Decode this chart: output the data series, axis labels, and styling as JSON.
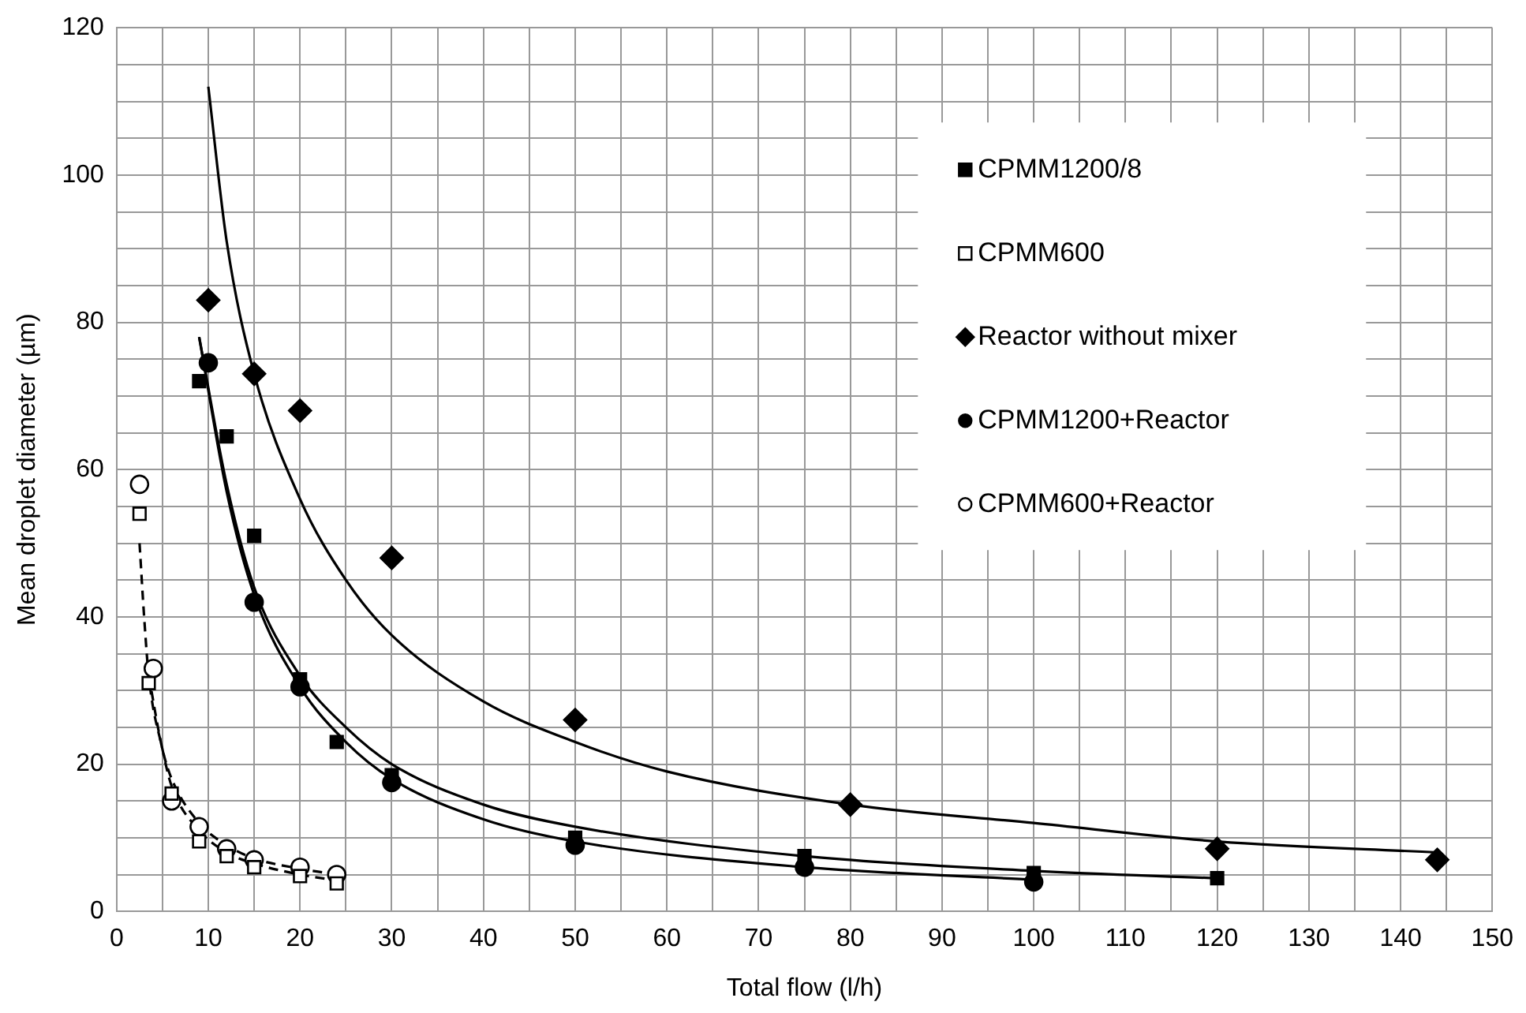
{
  "chart_data": {
    "type": "scatter",
    "xlabel": "Total flow (l/h)",
    "ylabel": "Mean droplet diameter (µm)",
    "xlim": [
      0,
      150
    ],
    "ylim": [
      0,
      120
    ],
    "xticks": [
      0,
      {
        "value": 5,
        "label": null
      },
      10,
      {
        "value": 15,
        "label": null
      },
      20,
      {
        "value": 25,
        "label": null
      },
      30,
      {
        "value": 35,
        "label": null
      },
      40,
      {
        "value": 45,
        "label": null
      },
      50,
      {
        "value": 55,
        "label": null
      },
      60,
      {
        "value": 65,
        "label": null
      },
      70,
      {
        "value": 75,
        "label": null
      },
      80,
      {
        "value": 85,
        "label": null
      },
      90,
      {
        "value": 95,
        "label": null
      },
      100,
      {
        "value": 105,
        "label": null
      },
      110,
      {
        "value": 115,
        "label": null
      },
      120,
      {
        "value": 125,
        "label": null
      },
      130,
      {
        "value": 135,
        "label": null
      },
      140,
      {
        "value": 145,
        "label": null
      },
      150
    ],
    "yticks": [
      0,
      {
        "value": 5,
        "label": null
      },
      {
        "value": 10,
        "label": null
      },
      {
        "value": 15,
        "label": null
      },
      20,
      {
        "value": 25,
        "label": null
      },
      {
        "value": 30,
        "label": null
      },
      {
        "value": 35,
        "label": null
      },
      40,
      {
        "value": 45,
        "label": null
      },
      {
        "value": 50,
        "label": null
      },
      {
        "value": 55,
        "label": null
      },
      60,
      {
        "value": 65,
        "label": null
      },
      {
        "value": 70,
        "label": null
      },
      {
        "value": 75,
        "label": null
      },
      80,
      {
        "value": 85,
        "label": null
      },
      {
        "value": 90,
        "label": null
      },
      {
        "value": 95,
        "label": null
      },
      100,
      {
        "value": 105,
        "label": null
      },
      {
        "value": 110,
        "label": null
      },
      {
        "value": 115,
        "label": null
      },
      120
    ],
    "grid": true,
    "legend": "top right",
    "series": [
      {
        "name": "CPMM1200/8",
        "marker": "square",
        "color": "#000000",
        "x": [
          9,
          12,
          15,
          20,
          24,
          30,
          50,
          75,
          100,
          120
        ],
        "values": [
          72,
          64.5,
          51,
          31.5,
          23,
          18.5,
          10,
          7.5,
          5.2,
          4.5
        ]
      },
      {
        "name": "CPMM600",
        "marker": "square",
        "color": "#ffffff",
        "x": [
          2.5,
          3.5,
          6,
          9,
          12,
          15,
          20,
          24
        ],
        "values": [
          54,
          31,
          16,
          9.5,
          7.5,
          6,
          4.8,
          3.8
        ]
      },
      {
        "name": "Reactor without mixer",
        "marker": "diamond",
        "color": "#000000",
        "x": [
          10,
          15,
          20,
          30,
          50,
          80,
          120,
          144
        ],
        "values": [
          83,
          73,
          68,
          48,
          26,
          14.5,
          8.5,
          7
        ]
      },
      {
        "name": "CPMM1200+Reactor",
        "marker": "circle",
        "color": "#000000",
        "x": [
          10,
          15,
          20,
          30,
          50,
          75,
          100
        ],
        "values": [
          74.5,
          42,
          30.5,
          17.5,
          9,
          6,
          4
        ]
      },
      {
        "name": "CPMM600+Reactor",
        "marker": "circle",
        "color": "#ffffff",
        "x": [
          2.5,
          4,
          6,
          9,
          12,
          15,
          20,
          24
        ],
        "values": [
          58,
          33,
          15,
          11.5,
          8.5,
          7,
          6,
          5
        ]
      },
      {
        "type": "line",
        "marker": "none",
        "line_style": "solid",
        "color": "#000000",
        "x": [
          10,
          12,
          15,
          20,
          25,
          30,
          40,
          50,
          60,
          80,
          100,
          120,
          144
        ],
        "values": [
          112,
          91,
          73,
          56,
          45,
          37.5,
          28.5,
          23,
          19,
          14.5,
          12,
          9.5,
          8
        ]
      },
      {
        "type": "line",
        "marker": "none",
        "line_style": "solid",
        "color": "#000000",
        "x": [
          9,
          12,
          15,
          20,
          25,
          30,
          40,
          50,
          75,
          100,
          120
        ],
        "values": [
          78,
          58,
          44,
          32,
          25,
          20,
          14.5,
          11.5,
          7.5,
          5.5,
          4.5
        ]
      },
      {
        "type": "line",
        "marker": "none",
        "line_style": "solid",
        "color": "#000000",
        "x": [
          9,
          12,
          15,
          20,
          25,
          30,
          40,
          50,
          75,
          100
        ],
        "values": [
          78,
          57,
          43,
          30.5,
          23,
          18,
          12.5,
          9.5,
          6,
          4.3
        ]
      },
      {
        "type": "line",
        "marker": "none",
        "line_style": "dashed",
        "color": "#000000",
        "x": [
          2.5,
          3,
          3.5,
          5,
          6,
          9,
          12,
          15,
          20,
          24
        ],
        "values": [
          50,
          40,
          32,
          22,
          17,
          11,
          8,
          6.5,
          5,
          4.2
        ]
      },
      {
        "type": "line",
        "marker": "none",
        "line_style": "dashed",
        "color": "#000000",
        "x": [
          3.5,
          5,
          6,
          9,
          12,
          15,
          20,
          24
        ],
        "values": [
          32,
          22,
          18,
          12,
          9,
          7.2,
          5.8,
          5
        ]
      }
    ]
  }
}
